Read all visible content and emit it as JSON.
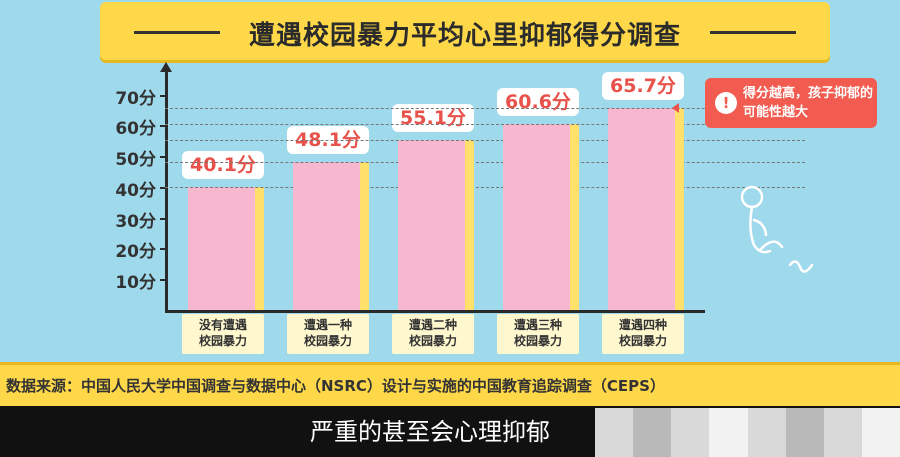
{
  "header": {
    "title": "遭遇校园暴力平均心里抑郁得分调查"
  },
  "colors": {
    "bar": "#f7b8cf",
    "bar_side": "#ffe06a",
    "label_text": "#e8524a",
    "banner": "#ffd84a",
    "note_bg": "#f25b4f"
  },
  "chart_data": {
    "type": "bar",
    "title": "遭遇校园暴力平均心里抑郁得分调查",
    "categories": [
      "没有遭遇\n校园暴力",
      "遭遇一种\n校园暴力",
      "遭遇二种\n校园暴力",
      "遭遇三种\n校园暴力",
      "遭遇四种\n校园暴力"
    ],
    "values": [
      40.1,
      48.1,
      55.1,
      60.6,
      65.7
    ],
    "value_labels": [
      "40.1分",
      "48.1分",
      "55.1分",
      "60.6分",
      "65.7分"
    ],
    "yticks": [
      "10分",
      "20分",
      "30分",
      "40分",
      "50分",
      "60分",
      "70分"
    ],
    "ytick_values": [
      10,
      20,
      30,
      40,
      50,
      60,
      70
    ],
    "ylim": [
      0,
      78
    ],
    "xlabel": "",
    "ylabel": "",
    "grid": "dashed reference lines at data values"
  },
  "annotation": {
    "badge": "!",
    "text": "得分越高，孩子抑郁的可能性越大"
  },
  "source": {
    "text": "数据来源：中国人民大学中国调查与数据中心（NSRC）设计与实施的中国教育追踪调查（CEPS）"
  },
  "subtitle": {
    "text": "严重的甚至会心理抑郁"
  }
}
